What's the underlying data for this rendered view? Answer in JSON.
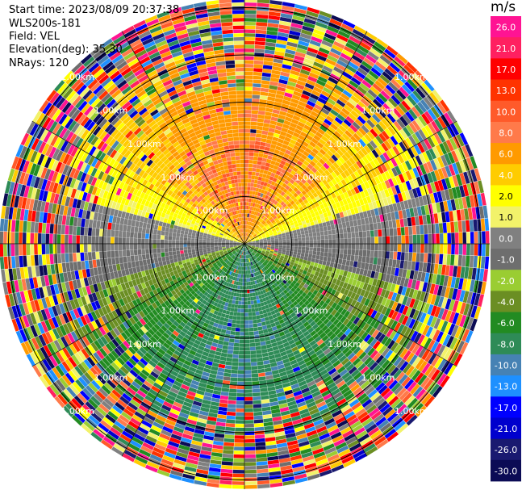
{
  "header": {
    "start_time": "Start time: 2023/08/09 20:37:38",
    "instrument": "WLS200s-181",
    "field": "Field: VEL",
    "elevation": "Elevation(deg): 35.30",
    "nrays": "NRays: 120"
  },
  "chart_data": {
    "type": "heatmap",
    "projection": "polar-ppi",
    "field": "VEL",
    "units": "m/s",
    "n_rays": 120,
    "elevation_deg": 35.3,
    "range_rings_km": [
      1,
      2,
      3,
      4,
      5
    ],
    "ring_label": "1.00km",
    "colorbar": {
      "unit": "m/s",
      "ticks": [
        26.0,
        21.0,
        17.0,
        13.0,
        10.0,
        8.0,
        6.0,
        4.0,
        2.0,
        1.0,
        0.0,
        -1.0,
        -2.0,
        -4.0,
        -6.0,
        -8.0,
        -10.0,
        -13.0,
        -17.0,
        -21.0,
        -26.0,
        -30.0
      ],
      "tick_labels": [
        "26.0",
        "21.0",
        "17.0",
        "13.0",
        "10.0",
        "8.0",
        "6.0",
        "4.0",
        "2.0",
        "1.0",
        "0.0",
        "-1.0",
        "-2.0",
        "-4.0",
        "-6.0",
        "-8.0",
        "-10.0",
        "-13.0",
        "-17.0",
        "-21.0",
        "-26.0",
        "-30.0"
      ],
      "colors": [
        "#ff1493",
        "#ff2060",
        "#ff0000",
        "#ff3300",
        "#ff5a2a",
        "#ff7a4a",
        "#ff9a00",
        "#ffcc00",
        "#ffff00",
        "#f2f26a",
        "#808080",
        "#6e6e6e",
        "#9acd32",
        "#6b8e23",
        "#228b22",
        "#2e8b57",
        "#4682b4",
        "#1e90ff",
        "#0000ff",
        "#0000cd",
        "#191970",
        "#0b0b55"
      ]
    },
    "approx_field_pattern": {
      "north_sector_near": "positive 2.0 to 4.0 m/s (yellow) with patches of 4.0-8.0 m/s",
      "east_west_near": "about 0.0 m/s (grey)",
      "south_sector_near": "negative -2.0 to -8.0 m/s (green) with a small patch near -10.0",
      "outer_gates": "noise across the full range of colors"
    }
  }
}
